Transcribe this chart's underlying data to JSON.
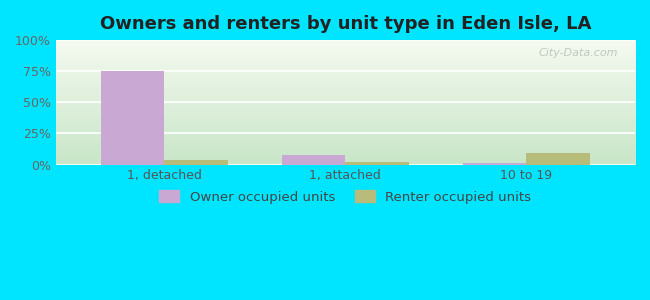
{
  "title": "Owners and renters by unit type in Eden Isle, LA",
  "categories": [
    "1, detached",
    "1, attached",
    "10 to 19"
  ],
  "owner_values": [
    75,
    8,
    1
  ],
  "renter_values": [
    4,
    2,
    9
  ],
  "owner_color": "#c9a8d4",
  "renter_color": "#b8bc7a",
  "ylim": [
    0,
    100
  ],
  "yticks": [
    0,
    25,
    50,
    75,
    100
  ],
  "ytick_labels": [
    "0%",
    "25%",
    "50%",
    "75%",
    "100%"
  ],
  "outer_bg": "#00e5ff",
  "bar_width": 0.35,
  "legend_labels": [
    "Owner occupied units",
    "Renter occupied units"
  ],
  "title_fontsize": 13,
  "watermark": "City-Data.com",
  "xlim": [
    -0.6,
    2.6
  ]
}
